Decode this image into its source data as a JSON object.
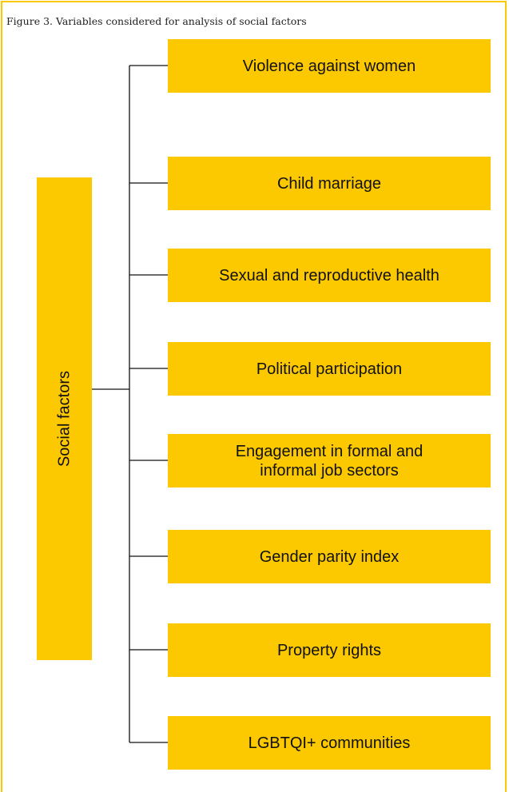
{
  "caption": "Figure 3. Variables considered for analysis of social factors",
  "root": "Social factors",
  "items": [
    "Violence against women",
    "Child marriage",
    "Sexual and reproductive health",
    "Political participation",
    "Engagement in formal and\ninformal job sectors",
    "Gender parity index",
    "Property rights",
    "LGBTQI+ communities"
  ]
}
